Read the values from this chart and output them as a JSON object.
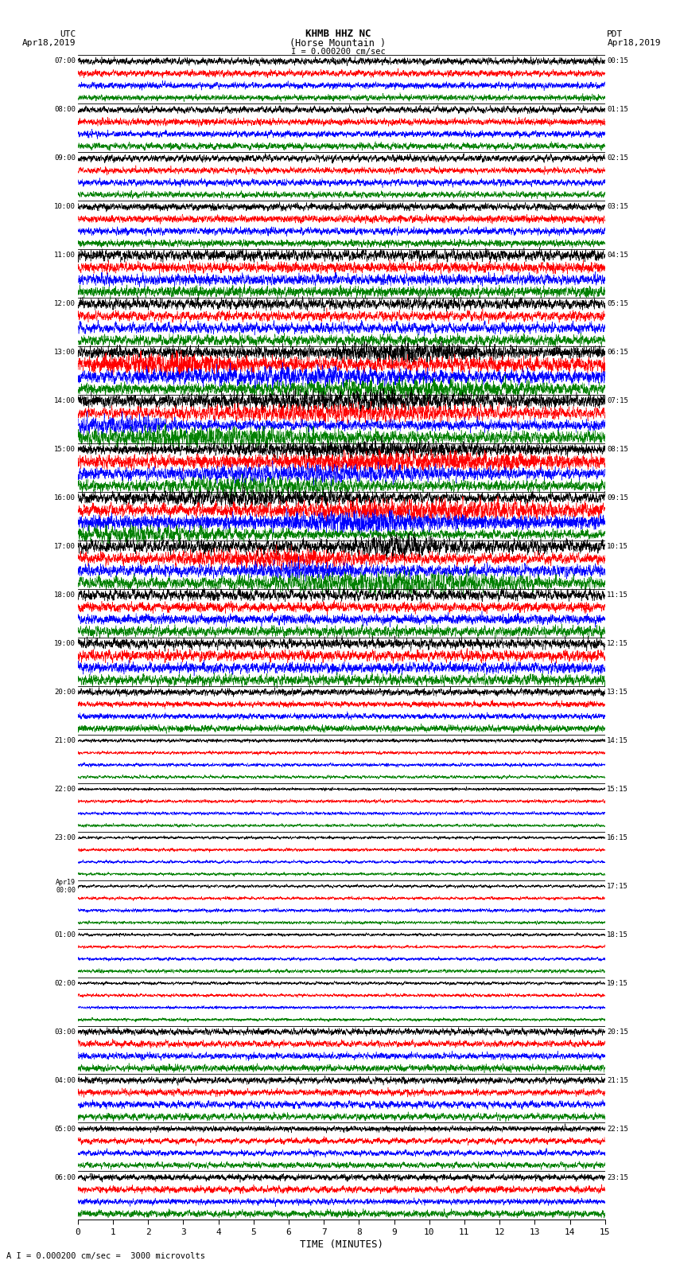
{
  "title_line1": "KHMB HHZ NC",
  "title_line2": "(Horse Mountain )",
  "scale_text": "I = 0.000200 cm/sec",
  "left_header_line1": "UTC",
  "left_header_line2": "Apr18,2019",
  "right_header_line1": "PDT",
  "right_header_line2": "Apr18,2019",
  "bottom_label": "TIME (MINUTES)",
  "bottom_note": "A I = 0.000200 cm/sec =  3000 microvolts",
  "xlabel_ticks": [
    0,
    1,
    2,
    3,
    4,
    5,
    6,
    7,
    8,
    9,
    10,
    11,
    12,
    13,
    14,
    15
  ],
  "left_times": [
    "07:00",
    "",
    "",
    "",
    "08:00",
    "",
    "",
    "",
    "09:00",
    "",
    "",
    "",
    "10:00",
    "",
    "",
    "",
    "11:00",
    "",
    "",
    "",
    "12:00",
    "",
    "",
    "",
    "13:00",
    "",
    "",
    "",
    "14:00",
    "",
    "",
    "",
    "15:00",
    "",
    "",
    "",
    "16:00",
    "",
    "",
    "",
    "17:00",
    "",
    "",
    "",
    "18:00",
    "",
    "",
    "",
    "19:00",
    "",
    "",
    "",
    "20:00",
    "",
    "",
    "",
    "21:00",
    "",
    "",
    "",
    "22:00",
    "",
    "",
    "",
    "23:00",
    "",
    "",
    "",
    "Apr19\n00:00",
    "",
    "",
    "",
    "01:00",
    "",
    "",
    "",
    "02:00",
    "",
    "",
    "",
    "03:00",
    "",
    "",
    "",
    "04:00",
    "",
    "",
    "",
    "05:00",
    "",
    "",
    "",
    "06:00",
    "",
    "",
    ""
  ],
  "right_times": [
    "00:15",
    "",
    "",
    "",
    "01:15",
    "",
    "",
    "",
    "02:15",
    "",
    "",
    "",
    "03:15",
    "",
    "",
    "",
    "04:15",
    "",
    "",
    "",
    "05:15",
    "",
    "",
    "",
    "06:15",
    "",
    "",
    "",
    "07:15",
    "",
    "",
    "",
    "08:15",
    "",
    "",
    "",
    "09:15",
    "",
    "",
    "",
    "10:15",
    "",
    "",
    "",
    "11:15",
    "",
    "",
    "",
    "12:15",
    "",
    "",
    "",
    "13:15",
    "",
    "",
    "",
    "14:15",
    "",
    "",
    "",
    "15:15",
    "",
    "",
    "",
    "16:15",
    "",
    "",
    "",
    "17:15",
    "",
    "",
    "",
    "18:15",
    "",
    "",
    "",
    "19:15",
    "",
    "",
    "",
    "20:15",
    "",
    "",
    "",
    "21:15",
    "",
    "",
    "",
    "22:15",
    "",
    "",
    "",
    "23:15",
    "",
    "",
    ""
  ],
  "num_traces": 96,
  "num_groups": 24,
  "traces_per_group": 4,
  "trace_colors": [
    "black",
    "red",
    "blue",
    "green"
  ],
  "separator_color": "black",
  "bg_color": "white",
  "trace_amplitude": 0.42,
  "figwidth": 8.5,
  "figheight": 16.13,
  "dpi": 100,
  "large_amplitude_groups": [
    6,
    7,
    8,
    9,
    10
  ],
  "medium_amplitude_groups": [
    4,
    5,
    11,
    12
  ],
  "low_amplitude_groups": [
    14,
    15,
    16,
    17,
    18,
    19
  ]
}
